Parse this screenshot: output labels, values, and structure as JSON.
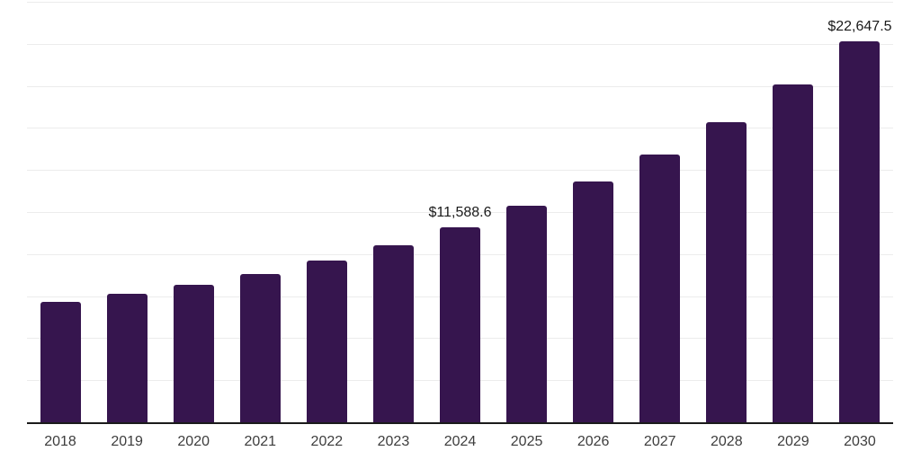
{
  "chart_data": {
    "type": "bar",
    "title": "",
    "xlabel": "",
    "ylabel": "",
    "categories": [
      "2018",
      "2019",
      "2020",
      "2021",
      "2022",
      "2023",
      "2024",
      "2025",
      "2026",
      "2027",
      "2028",
      "2029",
      "2030"
    ],
    "values": [
      7160,
      7640,
      8170,
      8840,
      9620,
      10550,
      11588.6,
      12870,
      14320,
      15920,
      17840,
      20090,
      22647.5
    ],
    "labeled_points": [
      {
        "category": "2024",
        "text": "$11,588.6"
      },
      {
        "category": "2030",
        "text": "$22,647.5"
      }
    ],
    "ylim": [
      0,
      25000
    ],
    "gridline_step": 2500,
    "grid": "horizontal-only",
    "legend": "none",
    "y_axis_tick_labels_visible": false,
    "bar_color": "#36154E",
    "axis_line_color": "#1b1b1b",
    "gridline_color": "#ececec",
    "x_tick_label_color": "#3d3d3d",
    "data_label_color": "#1a1a1a",
    "background_color": "#ffffff"
  }
}
